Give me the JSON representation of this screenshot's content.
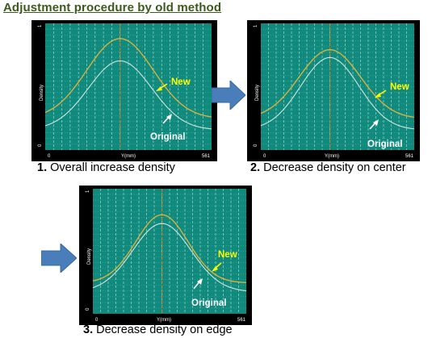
{
  "title": "Adjustment procedure by old method",
  "colors": {
    "plot_bg": "#118a7e",
    "frame": "#000000",
    "grid_major": "#d8f2ee",
    "grid_minor": "#5fb5ac",
    "center_line": "#d27a28",
    "new_curve": "#e2b43a",
    "original_curve": "#cfe6e0",
    "arrow_fill": "#4a7ebb",
    "new_label": "#ffff00",
    "original_label": "#ffffff"
  },
  "icons": {
    "step_arrow": "right-arrow-icon",
    "pointer": "pointer-arrow-icon"
  },
  "panels": [
    {
      "step": "1.",
      "caption": "Overall increase density",
      "ylabel": "Density",
      "xlabel": "Y(mm)",
      "y_top": "1",
      "y_bottom": "0",
      "x_min": "0",
      "x_max": "561",
      "label_new": "New",
      "label_original": "Original"
    },
    {
      "step": "2.",
      "caption": "Decrease density on center",
      "ylabel": "Density",
      "xlabel": "Y(mm)",
      "y_top": "1",
      "y_bottom": "0",
      "x_min": "0",
      "x_max": "561",
      "label_new": "New",
      "label_original": "Original"
    },
    {
      "step": "3.",
      "caption": "Decrease density on edge",
      "ylabel": "Density",
      "xlabel": "Y(mm)",
      "y_top": "1",
      "y_bottom": "0",
      "x_min": "0",
      "x_max": "561",
      "label_new": "New",
      "label_original": "Original"
    }
  ]
}
